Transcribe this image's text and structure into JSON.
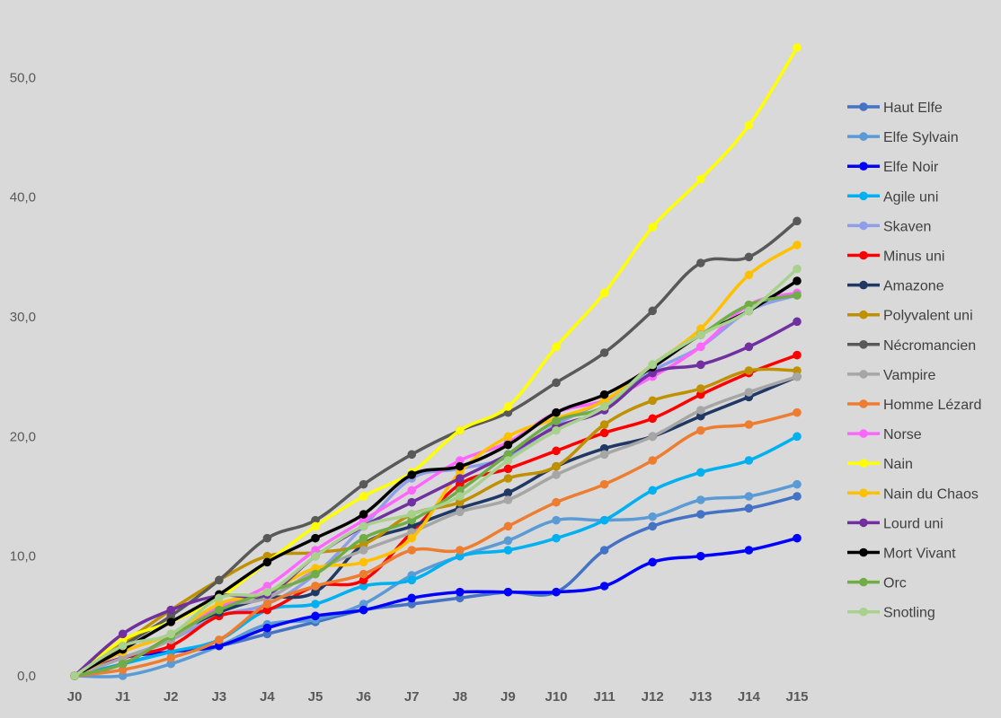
{
  "chart_data": {
    "type": "line",
    "title": "",
    "xlabel": "",
    "ylabel": "",
    "categories": [
      "J0",
      "J1",
      "J2",
      "J3",
      "J4",
      "J5",
      "J6",
      "J7",
      "J8",
      "J9",
      "J10",
      "J11",
      "J12",
      "J13",
      "J14",
      "J15"
    ],
    "ylim": [
      0,
      50
    ],
    "y_ticks": [
      "0,0",
      "10,0",
      "20,0",
      "30,0",
      "40,0",
      "50,0"
    ],
    "y_tick_values": [
      0,
      10,
      20,
      30,
      40,
      50
    ],
    "grid": false,
    "legend_position": "right",
    "background": "#d9d9d9",
    "series": [
      {
        "name": "Haut Elfe",
        "color": "#4472c4",
        "values": [
          0,
          1,
          2,
          2.5,
          3.5,
          4.5,
          5.5,
          6,
          6.5,
          7,
          7,
          10.5,
          12.5,
          13.5,
          14,
          15
        ]
      },
      {
        "name": "Elfe Sylvain",
        "color": "#5b9bd5",
        "values": [
          0,
          0,
          1,
          2.5,
          4.3,
          4.7,
          6,
          8.4,
          10,
          11.3,
          13,
          13,
          13.3,
          14.7,
          15,
          16
        ]
      },
      {
        "name": "Elfe Noir",
        "color": "#0000ff",
        "values": [
          0,
          1.5,
          2,
          2.5,
          4,
          5,
          5.5,
          6.5,
          7,
          7,
          7,
          7.5,
          9.5,
          10,
          10.5,
          11.5
        ]
      },
      {
        "name": "Agile uni",
        "color": "#00b0f0",
        "values": [
          0,
          1,
          2,
          3,
          5.5,
          6,
          7.5,
          8,
          10,
          10.5,
          11.5,
          13,
          15.5,
          17,
          18,
          20
        ]
      },
      {
        "name": "Skaven",
        "color": "#8e9ee8",
        "values": [
          0,
          1.5,
          3,
          5,
          6,
          8.5,
          12.5,
          16.5,
          17.3,
          18.3,
          21,
          23,
          25.5,
          27.5,
          30.5,
          31.8
        ]
      },
      {
        "name": "Minus uni",
        "color": "#ff0000",
        "values": [
          0,
          1.5,
          2.5,
          5,
          5.5,
          7.5,
          8,
          12,
          16,
          17.3,
          18.8,
          20.3,
          21.5,
          23.5,
          25.3,
          26.8
        ]
      },
      {
        "name": "Amazone",
        "color": "#203864",
        "values": [
          0,
          1,
          3.3,
          5.3,
          6.5,
          7,
          11,
          12.5,
          14,
          15.3,
          17.5,
          19,
          20,
          21.7,
          23.3,
          25
        ]
      },
      {
        "name": "Polyvalent uni",
        "color": "#bf9000",
        "values": [
          0,
          2.7,
          5.5,
          8,
          10,
          10.3,
          11,
          13.5,
          14.5,
          16.5,
          17.5,
          21,
          23,
          24,
          25.5,
          25.5
        ]
      },
      {
        "name": "Nécromancien",
        "color": "#595959",
        "values": [
          0,
          2.5,
          5,
          8,
          11.5,
          13,
          16,
          18.5,
          20.5,
          22,
          24.5,
          27,
          30.5,
          34.5,
          35,
          38
        ]
      },
      {
        "name": "Vampire",
        "color": "#a6a6a6",
        "values": [
          0,
          1.5,
          3,
          5.7,
          6.5,
          8.8,
          10.5,
          12,
          13.7,
          14.7,
          16.8,
          18.5,
          20,
          22.2,
          23.7,
          25
        ]
      },
      {
        "name": "Homme Lézard",
        "color": "#ed7d31",
        "values": [
          0,
          0.5,
          1.5,
          3,
          6,
          7.5,
          8.5,
          10.5,
          10.5,
          12.5,
          14.5,
          16,
          18,
          20.5,
          21,
          22
        ]
      },
      {
        "name": "Norse",
        "color": "#ff66ff",
        "values": [
          0,
          2,
          3.5,
          5.7,
          7.5,
          10.5,
          13,
          15.5,
          18,
          19.5,
          22,
          23,
          25,
          27.5,
          31,
          32
        ]
      },
      {
        "name": "Nain",
        "color": "#ffff00",
        "values": [
          0,
          3,
          4.5,
          6.5,
          9.5,
          12.5,
          15,
          17,
          20.5,
          22.5,
          27.5,
          32,
          37.5,
          41.5,
          46,
          52.5
        ]
      },
      {
        "name": "Nain du Chaos",
        "color": "#ffc000",
        "values": [
          0,
          2,
          3.5,
          6,
          7,
          9,
          9.5,
          11.5,
          17,
          20,
          21.5,
          23,
          26,
          29,
          33.5,
          36
        ]
      },
      {
        "name": "Lourd uni",
        "color": "#7030a0",
        "values": [
          0,
          3.5,
          5.5,
          6.7,
          6.8,
          10,
          12.5,
          14.5,
          16.5,
          18.5,
          20.8,
          22.2,
          25.3,
          26,
          27.5,
          29.6
        ]
      },
      {
        "name": "Mort Vivant",
        "color": "#000000",
        "values": [
          0,
          2.2,
          4.5,
          6.8,
          9.5,
          11.5,
          13.5,
          16.8,
          17.5,
          19.3,
          22,
          23.5,
          25.8,
          28.5,
          30.5,
          33
        ]
      },
      {
        "name": "Orc",
        "color": "#70ad47",
        "values": [
          0,
          1,
          3.3,
          5.5,
          7,
          8.5,
          11.5,
          13,
          15.5,
          18.5,
          21.3,
          22.5,
          26,
          28.5,
          31,
          31.8
        ]
      },
      {
        "name": "Snotling",
        "color": "#a9d18e",
        "values": [
          0,
          2.5,
          3.5,
          6.5,
          7,
          10,
          12.5,
          13.5,
          15,
          18,
          20.5,
          22.5,
          26,
          28.5,
          30.5,
          34
        ]
      }
    ]
  }
}
